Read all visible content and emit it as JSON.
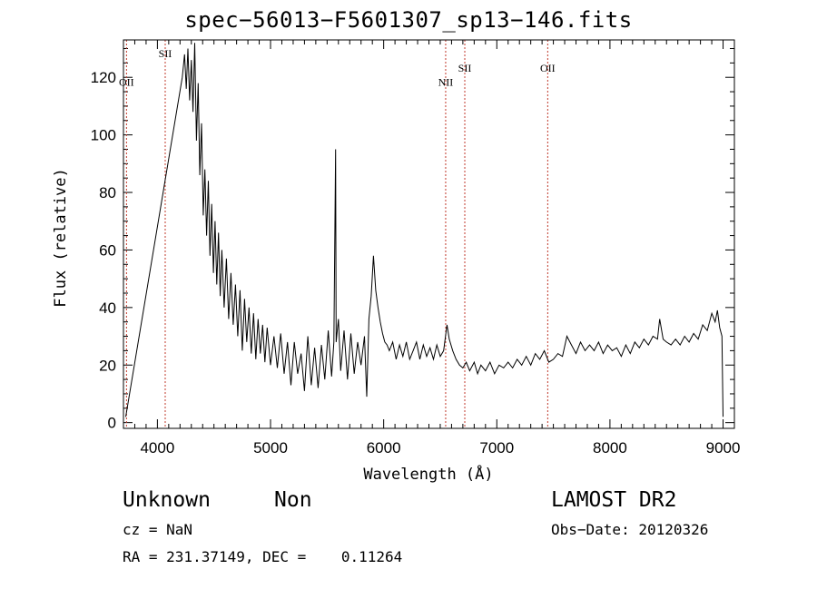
{
  "chart_data": {
    "type": "line",
    "title": "spec−56013−F5601307_sp13−146.fits",
    "xlabel": "Wavelength (Å)",
    "ylabel": "Flux (relative)",
    "xlim": [
      3700,
      9100
    ],
    "ylim": [
      -2,
      133
    ],
    "xticks": [
      4000,
      5000,
      6000,
      7000,
      8000,
      9000
    ],
    "yticks": [
      0,
      20,
      40,
      60,
      80,
      100,
      120
    ],
    "series": [
      {
        "points": [
          [
            3720,
            2
          ],
          [
            4220,
            120
          ],
          [
            4240,
            128
          ],
          [
            4255,
            116
          ],
          [
            4270,
            130
          ],
          [
            4285,
            112
          ],
          [
            4300,
            126
          ],
          [
            4315,
            108
          ],
          [
            4330,
            132
          ],
          [
            4345,
            98
          ],
          [
            4360,
            118
          ],
          [
            4375,
            86
          ],
          [
            4390,
            104
          ],
          [
            4405,
            72
          ],
          [
            4420,
            88
          ],
          [
            4435,
            65
          ],
          [
            4450,
            84
          ],
          [
            4465,
            58
          ],
          [
            4480,
            76
          ],
          [
            4495,
            52
          ],
          [
            4510,
            70
          ],
          [
            4525,
            48
          ],
          [
            4540,
            66
          ],
          [
            4555,
            44
          ],
          [
            4570,
            60
          ],
          [
            4590,
            40
          ],
          [
            4610,
            57
          ],
          [
            4630,
            36
          ],
          [
            4650,
            52
          ],
          [
            4670,
            34
          ],
          [
            4690,
            48
          ],
          [
            4710,
            30
          ],
          [
            4730,
            46
          ],
          [
            4750,
            25
          ],
          [
            4770,
            43
          ],
          [
            4790,
            28
          ],
          [
            4810,
            40
          ],
          [
            4830,
            24
          ],
          [
            4850,
            38
          ],
          [
            4870,
            22
          ],
          [
            4890,
            36
          ],
          [
            4910,
            24
          ],
          [
            4930,
            34
          ],
          [
            4950,
            21
          ],
          [
            4970,
            33
          ],
          [
            5000,
            20
          ],
          [
            5030,
            30
          ],
          [
            5060,
            19
          ],
          [
            5090,
            31
          ],
          [
            5120,
            17
          ],
          [
            5150,
            28
          ],
          [
            5180,
            13
          ],
          [
            5210,
            28
          ],
          [
            5240,
            17
          ],
          [
            5270,
            24
          ],
          [
            5300,
            11
          ],
          [
            5330,
            30
          ],
          [
            5360,
            13
          ],
          [
            5390,
            26
          ],
          [
            5420,
            12
          ],
          [
            5450,
            27
          ],
          [
            5480,
            15
          ],
          [
            5510,
            32
          ],
          [
            5540,
            16
          ],
          [
            5560,
            28
          ],
          [
            5575,
            95
          ],
          [
            5580,
            28
          ],
          [
            5600,
            36
          ],
          [
            5620,
            18
          ],
          [
            5650,
            32
          ],
          [
            5680,
            15
          ],
          [
            5710,
            31
          ],
          [
            5740,
            17
          ],
          [
            5770,
            28
          ],
          [
            5800,
            20
          ],
          [
            5830,
            30
          ],
          [
            5850,
            9
          ],
          [
            5870,
            36
          ],
          [
            5890,
            44
          ],
          [
            5910,
            58
          ],
          [
            5930,
            46
          ],
          [
            5950,
            40
          ],
          [
            5970,
            35
          ],
          [
            5990,
            31
          ],
          [
            6010,
            28
          ],
          [
            6030,
            27
          ],
          [
            6050,
            25
          ],
          [
            6080,
            28
          ],
          [
            6110,
            22
          ],
          [
            6140,
            27
          ],
          [
            6170,
            23
          ],
          [
            6200,
            28
          ],
          [
            6230,
            22
          ],
          [
            6260,
            25
          ],
          [
            6290,
            28
          ],
          [
            6320,
            22
          ],
          [
            6350,
            27
          ],
          [
            6380,
            23
          ],
          [
            6410,
            26
          ],
          [
            6440,
            22
          ],
          [
            6470,
            27
          ],
          [
            6500,
            23
          ],
          [
            6530,
            25
          ],
          [
            6560,
            34
          ],
          [
            6580,
            29
          ],
          [
            6610,
            25
          ],
          [
            6640,
            22
          ],
          [
            6670,
            20
          ],
          [
            6700,
            19
          ],
          [
            6730,
            21
          ],
          [
            6760,
            18
          ],
          [
            6800,
            21
          ],
          [
            6830,
            17
          ],
          [
            6860,
            20
          ],
          [
            6900,
            18
          ],
          [
            6940,
            21
          ],
          [
            6980,
            17
          ],
          [
            7020,
            20
          ],
          [
            7060,
            19
          ],
          [
            7100,
            21
          ],
          [
            7140,
            19
          ],
          [
            7180,
            22
          ],
          [
            7220,
            20
          ],
          [
            7260,
            23
          ],
          [
            7300,
            20
          ],
          [
            7340,
            24
          ],
          [
            7380,
            22
          ],
          [
            7420,
            25
          ],
          [
            7460,
            21
          ],
          [
            7500,
            22
          ],
          [
            7540,
            24
          ],
          [
            7580,
            23
          ],
          [
            7620,
            30
          ],
          [
            7660,
            27
          ],
          [
            7700,
            24
          ],
          [
            7740,
            28
          ],
          [
            7780,
            25
          ],
          [
            7820,
            27
          ],
          [
            7860,
            25
          ],
          [
            7900,
            28
          ],
          [
            7940,
            24
          ],
          [
            7980,
            27
          ],
          [
            8020,
            25
          ],
          [
            8060,
            26
          ],
          [
            8100,
            23
          ],
          [
            8140,
            27
          ],
          [
            8180,
            24
          ],
          [
            8220,
            28
          ],
          [
            8260,
            26
          ],
          [
            8300,
            29
          ],
          [
            8340,
            27
          ],
          [
            8380,
            30
          ],
          [
            8420,
            29
          ],
          [
            8440,
            36
          ],
          [
            8470,
            29
          ],
          [
            8500,
            28
          ],
          [
            8540,
            27
          ],
          [
            8580,
            29
          ],
          [
            8620,
            27
          ],
          [
            8660,
            30
          ],
          [
            8700,
            28
          ],
          [
            8740,
            31
          ],
          [
            8780,
            29
          ],
          [
            8820,
            34
          ],
          [
            8860,
            32
          ],
          [
            8900,
            38
          ],
          [
            8930,
            35
          ],
          [
            8950,
            39
          ],
          [
            8970,
            33
          ],
          [
            8990,
            30
          ],
          [
            9000,
            2
          ]
        ]
      }
    ],
    "lines": [
      {
        "label": "SII",
        "x": 4069,
        "label_y": 127
      },
      {
        "label": "OII",
        "x": 3727,
        "label_y": 117
      },
      {
        "label": "NII",
        "x": 6548,
        "label_y": 117
      },
      {
        "label": "SII",
        "x": 6717,
        "label_y": 122
      },
      {
        "label": "OII",
        "x": 7450,
        "label_y": 122
      }
    ],
    "line_color": "#c0392b",
    "grid": false
  },
  "info": {
    "class": "Unknown",
    "subclass": "Non",
    "survey": "LAMOST DR2",
    "cz": "cz = NaN",
    "obs_date": "Obs−Date: 20120326",
    "radec": "RA = 231.37149, DEC =    0.11264"
  }
}
